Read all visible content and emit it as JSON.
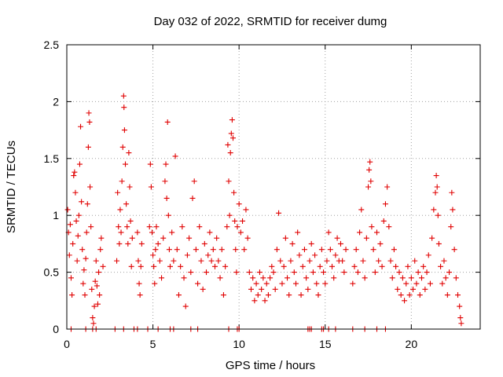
{
  "chart_data": {
    "type": "scatter",
    "title": "Day 032 of 2022, SRMTID for receiver dumg",
    "xlabel": "GPS time / hours",
    "ylabel": "SRMTID / TECUs",
    "xlim": [
      0,
      24
    ],
    "ylim": [
      0,
      2.5
    ],
    "xticks": [
      0,
      5,
      10,
      15,
      20
    ],
    "xtick_labels": [
      "0",
      "5",
      "10",
      "15",
      "20"
    ],
    "yticks": [
      0,
      0.5,
      1,
      1.5,
      2,
      2.5
    ],
    "ytick_labels": [
      "0",
      "0.5",
      "1",
      "1.5",
      "2",
      "2.5"
    ],
    "grid": true,
    "marker": "+",
    "color": "#e00000",
    "series": [
      {
        "name": "SRMTID",
        "points": [
          [
            0.05,
            1.05
          ],
          [
            0.1,
            0.85
          ],
          [
            0.15,
            0.65
          ],
          [
            0.2,
            0.92
          ],
          [
            0.25,
            0.45
          ],
          [
            0.3,
            0.3
          ],
          [
            0.35,
            0.75
          ],
          [
            0.4,
            1.35
          ],
          [
            0.45,
            1.38
          ],
          [
            0.5,
            1.2
          ],
          [
            0.55,
            0.95
          ],
          [
            0.6,
            0.6
          ],
          [
            0.65,
            0.82
          ],
          [
            0.7,
            1.0
          ],
          [
            0.75,
            1.45
          ],
          [
            0.8,
            1.78
          ],
          [
            0.85,
            1.12
          ],
          [
            0.9,
            0.7
          ],
          [
            0.95,
            0.4
          ],
          [
            1.0,
            0.52
          ],
          [
            1.05,
            0.3
          ],
          [
            1.1,
            0.62
          ],
          [
            1.15,
            0.85
          ],
          [
            1.2,
            1.1
          ],
          [
            1.25,
            1.6
          ],
          [
            1.28,
            1.9
          ],
          [
            1.32,
            1.82
          ],
          [
            1.35,
            1.25
          ],
          [
            1.4,
            0.9
          ],
          [
            1.45,
            0.35
          ],
          [
            1.5,
            0.1
          ],
          [
            1.55,
            0.05
          ],
          [
            1.6,
            0.2
          ],
          [
            1.65,
            0.42
          ],
          [
            1.7,
            0.6
          ],
          [
            1.75,
            0.38
          ],
          [
            1.8,
            0.22
          ],
          [
            1.85,
            0.5
          ],
          [
            1.9,
            0.3
          ],
          [
            1.95,
            0.7
          ],
          [
            2.0,
            0.8
          ],
          [
            2.1,
            0.55
          ],
          [
            2.9,
            0.6
          ],
          [
            2.95,
            1.2
          ],
          [
            3.0,
            0.9
          ],
          [
            3.05,
            0.75
          ],
          [
            3.1,
            1.05
          ],
          [
            3.15,
            0.85
          ],
          [
            3.2,
            1.3
          ],
          [
            3.25,
            1.6
          ],
          [
            3.3,
            2.05
          ],
          [
            3.32,
            1.95
          ],
          [
            3.35,
            1.75
          ],
          [
            3.4,
            1.45
          ],
          [
            3.45,
            1.1
          ],
          [
            3.5,
            0.9
          ],
          [
            3.55,
            0.75
          ],
          [
            3.6,
            1.55
          ],
          [
            3.65,
            1.25
          ],
          [
            3.7,
            0.95
          ],
          [
            3.75,
            0.55
          ],
          [
            3.8,
            0.8
          ],
          [
            4.1,
            0.85
          ],
          [
            4.15,
            0.6
          ],
          [
            4.2,
            0.4
          ],
          [
            4.25,
            0.3
          ],
          [
            4.3,
            0.55
          ],
          [
            4.35,
            0.75
          ],
          [
            4.8,
            0.9
          ],
          [
            4.85,
            1.45
          ],
          [
            4.9,
            1.25
          ],
          [
            4.95,
            0.85
          ],
          [
            5.0,
            0.65
          ],
          [
            5.05,
            0.55
          ],
          [
            5.1,
            0.4
          ],
          [
            5.15,
            0.7
          ],
          [
            5.2,
            0.9
          ],
          [
            5.3,
            0.75
          ],
          [
            5.4,
            0.6
          ],
          [
            5.5,
            0.45
          ],
          [
            5.6,
            0.8
          ],
          [
            5.7,
            1.3
          ],
          [
            5.75,
            1.45
          ],
          [
            5.8,
            1.15
          ],
          [
            5.85,
            1.82
          ],
          [
            5.9,
            1.0
          ],
          [
            5.95,
            0.7
          ],
          [
            6.0,
            0.55
          ],
          [
            6.1,
            0.85
          ],
          [
            6.2,
            0.6
          ],
          [
            6.3,
            1.52
          ],
          [
            6.4,
            0.7
          ],
          [
            6.5,
            0.3
          ],
          [
            6.6,
            0.55
          ],
          [
            6.7,
            0.9
          ],
          [
            6.8,
            0.45
          ],
          [
            6.9,
            0.2
          ],
          [
            7.0,
            0.65
          ],
          [
            7.1,
            0.8
          ],
          [
            7.2,
            0.5
          ],
          [
            7.3,
            1.15
          ],
          [
            7.4,
            1.3
          ],
          [
            7.5,
            0.7
          ],
          [
            7.6,
            0.4
          ],
          [
            7.7,
            0.9
          ],
          [
            7.8,
            0.6
          ],
          [
            7.9,
            0.35
          ],
          [
            8.0,
            0.75
          ],
          [
            8.1,
            0.5
          ],
          [
            8.2,
            0.65
          ],
          [
            8.3,
            0.85
          ],
          [
            8.4,
            0.6
          ],
          [
            8.5,
            0.7
          ],
          [
            8.6,
            0.55
          ],
          [
            8.7,
            0.8
          ],
          [
            8.8,
            0.6
          ],
          [
            8.9,
            0.45
          ],
          [
            9.0,
            0.7
          ],
          [
            9.1,
            0.3
          ],
          [
            9.2,
            0.55
          ],
          [
            9.3,
            0.9
          ],
          [
            9.35,
            1.62
          ],
          [
            9.4,
            1.3
          ],
          [
            9.45,
            1.0
          ],
          [
            9.5,
            1.55
          ],
          [
            9.55,
            1.72
          ],
          [
            9.6,
            1.84
          ],
          [
            9.65,
            1.68
          ],
          [
            9.7,
            1.2
          ],
          [
            9.75,
            0.95
          ],
          [
            9.8,
            0.7
          ],
          [
            9.85,
            0.5
          ],
          [
            9.9,
            0.9
          ],
          [
            10.0,
            1.1
          ],
          [
            10.1,
            0.85
          ],
          [
            10.2,
            0.95
          ],
          [
            10.3,
            0.7
          ],
          [
            10.4,
            1.05
          ],
          [
            10.5,
            0.8
          ],
          [
            10.6,
            0.5
          ],
          [
            10.7,
            0.35
          ],
          [
            10.8,
            0.45
          ],
          [
            10.9,
            0.25
          ],
          [
            11.0,
            0.4
          ],
          [
            11.1,
            0.3
          ],
          [
            11.2,
            0.5
          ],
          [
            11.3,
            0.35
          ],
          [
            11.4,
            0.45
          ],
          [
            11.5,
            0.25
          ],
          [
            11.6,
            0.4
          ],
          [
            11.7,
            0.3
          ],
          [
            11.8,
            0.45
          ],
          [
            11.9,
            0.55
          ],
          [
            12.0,
            0.5
          ],
          [
            12.1,
            0.35
          ],
          [
            12.2,
            0.7
          ],
          [
            12.3,
            1.02
          ],
          [
            12.4,
            0.6
          ],
          [
            12.5,
            0.4
          ],
          [
            12.6,
            0.55
          ],
          [
            12.7,
            0.8
          ],
          [
            12.8,
            0.45
          ],
          [
            12.9,
            0.3
          ],
          [
            13.0,
            0.6
          ],
          [
            13.1,
            0.75
          ],
          [
            13.2,
            0.5
          ],
          [
            13.3,
            0.4
          ],
          [
            13.4,
            0.85
          ],
          [
            13.5,
            0.65
          ],
          [
            13.6,
            0.3
          ],
          [
            13.7,
            0.55
          ],
          [
            13.8,
            0.7
          ],
          [
            13.9,
            0.45
          ],
          [
            14.0,
            0.35
          ],
          [
            14.1,
            0.6
          ],
          [
            14.2,
            0.75
          ],
          [
            14.3,
            0.5
          ],
          [
            14.4,
            0.65
          ],
          [
            14.5,
            0.4
          ],
          [
            14.6,
            0.3
          ],
          [
            14.7,
            0.55
          ],
          [
            14.8,
            0.7
          ],
          [
            14.9,
            0.5
          ],
          [
            15.0,
            0.4
          ],
          [
            15.1,
            0.6
          ],
          [
            15.2,
            0.85
          ],
          [
            15.3,
            0.7
          ],
          [
            15.4,
            0.55
          ],
          [
            15.5,
            0.45
          ],
          [
            15.6,
            0.65
          ],
          [
            15.7,
            0.8
          ],
          [
            15.8,
            0.6
          ],
          [
            15.9,
            0.75
          ],
          [
            16.0,
            0.6
          ],
          [
            16.1,
            0.5
          ],
          [
            16.2,
            0.7
          ],
          [
            16.6,
            0.4
          ],
          [
            16.7,
            0.55
          ],
          [
            16.8,
            0.7
          ],
          [
            16.9,
            0.5
          ],
          [
            17.0,
            0.85
          ],
          [
            17.1,
            1.05
          ],
          [
            17.2,
            0.6
          ],
          [
            17.3,
            0.45
          ],
          [
            17.4,
            0.8
          ],
          [
            17.5,
            1.25
          ],
          [
            17.55,
            1.4
          ],
          [
            17.6,
            1.47
          ],
          [
            17.65,
            1.3
          ],
          [
            17.7,
            0.9
          ],
          [
            17.8,
            0.7
          ],
          [
            17.9,
            0.5
          ],
          [
            18.0,
            0.85
          ],
          [
            18.1,
            0.6
          ],
          [
            18.2,
            0.75
          ],
          [
            18.3,
            0.55
          ],
          [
            18.4,
            0.95
          ],
          [
            18.5,
            1.1
          ],
          [
            18.6,
            1.25
          ],
          [
            18.7,
            0.9
          ],
          [
            18.8,
            0.6
          ],
          [
            18.9,
            0.45
          ],
          [
            19.0,
            0.7
          ],
          [
            19.1,
            0.55
          ],
          [
            19.2,
            0.35
          ],
          [
            19.3,
            0.5
          ],
          [
            19.4,
            0.3
          ],
          [
            19.5,
            0.45
          ],
          [
            19.6,
            0.25
          ],
          [
            19.7,
            0.4
          ],
          [
            19.8,
            0.55
          ],
          [
            19.9,
            0.3
          ],
          [
            20.0,
            0.45
          ],
          [
            20.1,
            0.35
          ],
          [
            20.2,
            0.6
          ],
          [
            20.3,
            0.4
          ],
          [
            20.4,
            0.5
          ],
          [
            20.5,
            0.3
          ],
          [
            20.6,
            0.45
          ],
          [
            20.7,
            0.55
          ],
          [
            20.8,
            0.35
          ],
          [
            20.9,
            0.5
          ],
          [
            21.0,
            0.65
          ],
          [
            21.1,
            0.4
          ],
          [
            21.2,
            0.8
          ],
          [
            21.3,
            1.05
          ],
          [
            21.4,
            1.2
          ],
          [
            21.45,
            1.35
          ],
          [
            21.5,
            1.25
          ],
          [
            21.55,
            1.0
          ],
          [
            21.6,
            0.75
          ],
          [
            21.7,
            0.55
          ],
          [
            21.8,
            0.4
          ],
          [
            21.9,
            0.6
          ],
          [
            22.0,
            0.45
          ],
          [
            22.1,
            0.3
          ],
          [
            22.2,
            0.5
          ],
          [
            22.3,
            0.9
          ],
          [
            22.35,
            1.2
          ],
          [
            22.4,
            1.05
          ],
          [
            22.5,
            0.7
          ],
          [
            22.6,
            0.45
          ],
          [
            22.7,
            0.3
          ],
          [
            22.8,
            0.2
          ],
          [
            22.85,
            0.1
          ],
          [
            22.9,
            0.05
          ]
        ]
      }
    ],
    "zero_points_x": [
      0.25,
      1.1,
      1.5,
      1.7,
      2.8,
      3.3,
      3.9,
      4.1,
      4.7,
      5.3,
      6.0,
      6.2,
      7.2,
      7.6,
      9.4,
      9.9,
      10.0,
      14.0,
      14.1,
      14.2,
      14.8,
      14.9,
      15.2,
      15.6,
      16.6,
      17.3,
      18.0,
      18.5
    ]
  }
}
